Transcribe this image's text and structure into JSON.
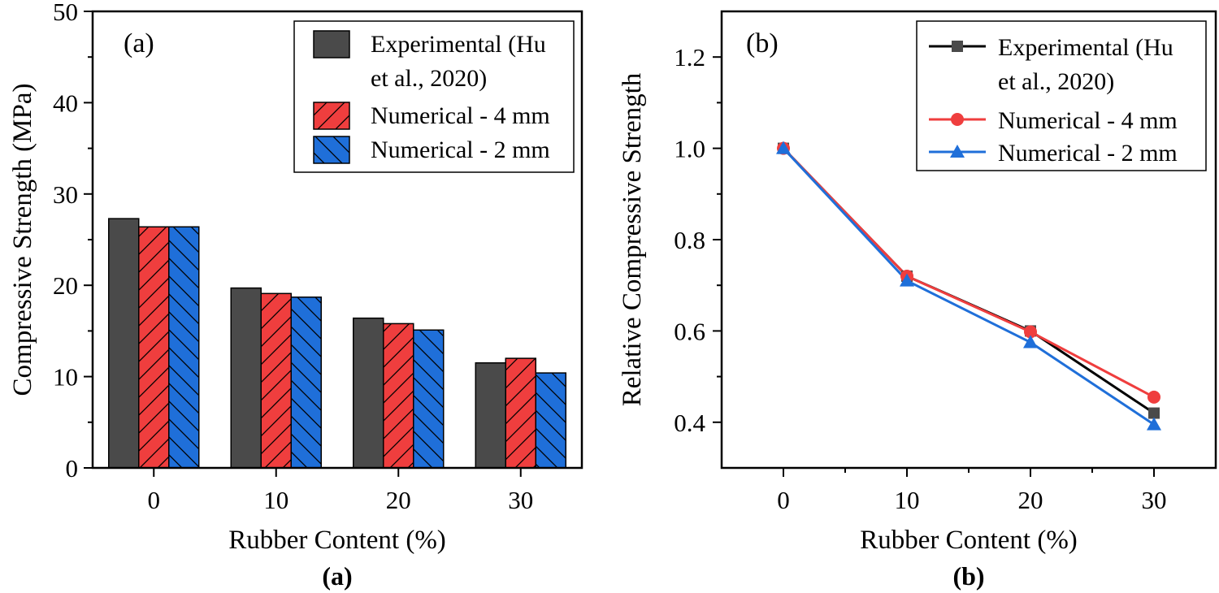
{
  "captions": {
    "a": "(a)",
    "b": "(b)"
  },
  "colors": {
    "experimental": "#4a4a4a",
    "numerical_4mm": "#ef3e3e",
    "numerical_2mm": "#1f6fd9"
  },
  "chart_data": [
    {
      "type": "bar",
      "panel_tag": "(a)",
      "title": "",
      "xlabel": "Rubber Content (%)",
      "ylabel": "Compressive Strength (MPa)",
      "categories": [
        "0",
        "10",
        "20",
        "30"
      ],
      "ylim": [
        0,
        50
      ],
      "yticks": [
        "0",
        "10",
        "20",
        "30",
        "40",
        "50"
      ],
      "legend_position": "top-right",
      "grid": false,
      "series": [
        {
          "name": "Experimental (Hu et al., 2020)",
          "legend_lines": [
            "Experimental (Hu",
            "et al., 2020)"
          ],
          "pattern": "solid",
          "values": [
            27.3,
            19.7,
            16.4,
            11.5
          ]
        },
        {
          "name": "Numerical - 4 mm",
          "legend_lines": [
            "Numerical - 4 mm"
          ],
          "pattern": "forward-hatch",
          "values": [
            26.4,
            19.1,
            15.8,
            12.0
          ]
        },
        {
          "name": "Numerical - 2 mm",
          "legend_lines": [
            "Numerical - 2 mm"
          ],
          "pattern": "back-hatch",
          "values": [
            26.4,
            18.7,
            15.1,
            10.4
          ]
        }
      ]
    },
    {
      "type": "line",
      "panel_tag": "(b)",
      "title": "",
      "xlabel": "Rubber Content (%)",
      "ylabel": "Relative Compressive Strength",
      "x": [
        0,
        10,
        20,
        30
      ],
      "xticks": [
        "0",
        "10",
        "20",
        "30"
      ],
      "xlim": [
        -5,
        35
      ],
      "ylim": [
        0.3,
        1.3
      ],
      "yticks": [
        "0.4",
        "0.6",
        "0.8",
        "1.0",
        "1.2"
      ],
      "legend_position": "top-right",
      "grid": false,
      "series": [
        {
          "name": "Experimental (Hu et al., 2020)",
          "legend_lines": [
            "Experimental (Hu",
            "et al., 2020)"
          ],
          "marker": "square",
          "values": [
            1.0,
            0.72,
            0.6,
            0.42
          ]
        },
        {
          "name": "Numerical - 4 mm",
          "legend_lines": [
            "Numerical - 4 mm"
          ],
          "marker": "circle",
          "values": [
            1.0,
            0.72,
            0.598,
            0.455
          ]
        },
        {
          "name": "Numerical - 2 mm",
          "legend_lines": [
            "Numerical - 2 mm"
          ],
          "marker": "triangle",
          "values": [
            1.0,
            0.71,
            0.575,
            0.395
          ]
        }
      ]
    }
  ]
}
